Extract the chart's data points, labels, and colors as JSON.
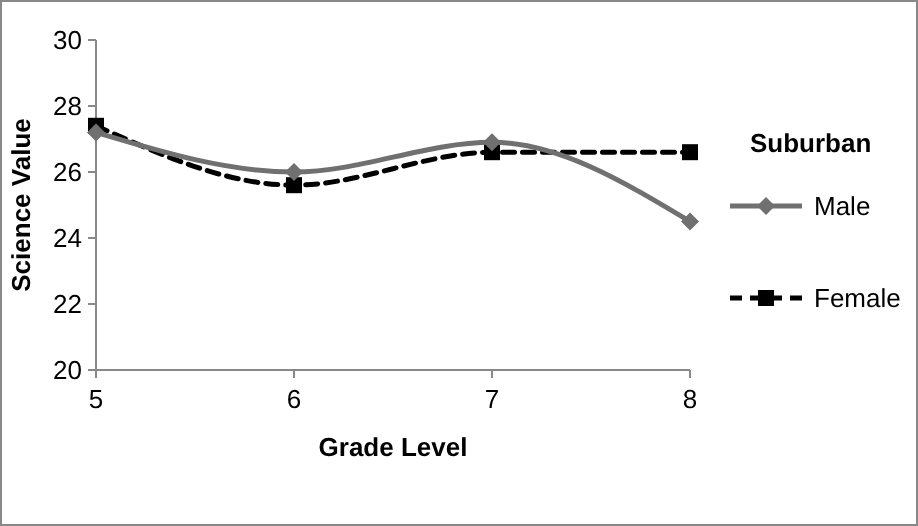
{
  "chart_data": {
    "type": "line",
    "xlabel": "Grade Level",
    "ylabel": "Science Value",
    "legend_title": "Suburban",
    "categories": [
      "5",
      "6",
      "7",
      "8"
    ],
    "ylim": [
      20,
      30
    ],
    "yticks": [
      20,
      22,
      24,
      26,
      28,
      30
    ],
    "grid": false,
    "legend": "right",
    "series": [
      {
        "name": "Male",
        "color": "#707070",
        "values": [
          27.2,
          26.0,
          26.9,
          24.5
        ],
        "marker": "diamond",
        "line_style": "solid"
      },
      {
        "name": "Female",
        "color": "#000000",
        "values": [
          27.4,
          25.6,
          26.6,
          26.6
        ],
        "marker": "square",
        "line_style": "dashed"
      }
    ]
  }
}
